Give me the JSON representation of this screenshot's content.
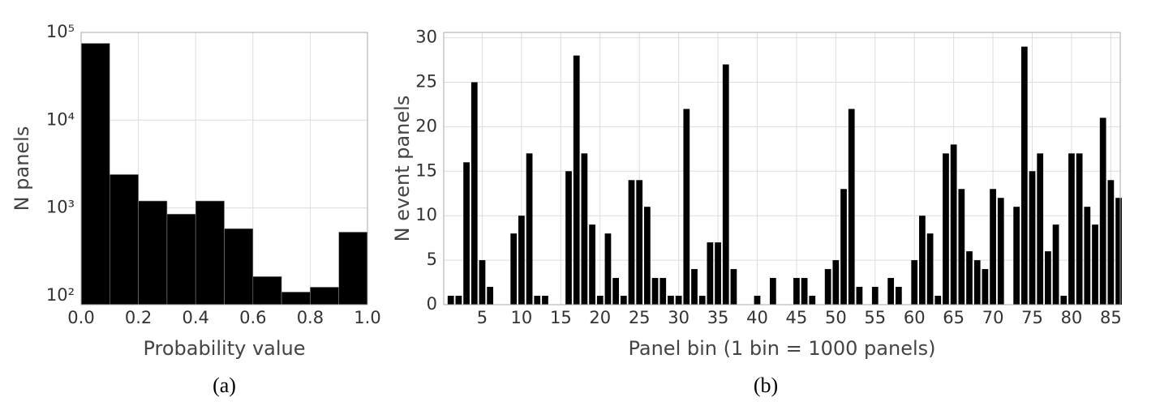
{
  "chart_data": [
    {
      "type": "histogram",
      "caption": "(a)",
      "xlabel": "Probability value",
      "ylabel": "N panels",
      "bins": [
        0,
        0.1,
        0.2,
        0.3,
        0.4,
        0.5,
        0.6,
        0.7,
        0.8,
        0.9,
        1.0
      ],
      "values": [
        75000,
        2400,
        1200,
        850,
        1200,
        580,
        165,
        110,
        125,
        530
      ],
      "color": "#000000",
      "log_y": true,
      "grid": true,
      "xlim": [
        0,
        1
      ],
      "ylim": [
        79,
        100000
      ],
      "xticks": [
        {
          "value": 0,
          "label": "0.0"
        },
        0.2,
        0.4,
        0.6,
        0.8,
        {
          "value": 1,
          "label": "1.0"
        }
      ],
      "yticks": [
        {
          "value": 100,
          "label": "10²"
        },
        {
          "value": 1000,
          "label": "10³"
        },
        {
          "value": 10000,
          "label": "10⁴"
        },
        {
          "value": 100000,
          "label": "10⁵"
        }
      ]
    },
    {
      "type": "bar",
      "caption": "(b)",
      "xlabel": "Panel bin (1 bin = 1000 panels)",
      "ylabel": "N event panels",
      "x": [
        1,
        2,
        3,
        4,
        5,
        6,
        9,
        10,
        11,
        12,
        13,
        16,
        17,
        18,
        19,
        20,
        21,
        22,
        23,
        24,
        25,
        26,
        27,
        28,
        29,
        30,
        31,
        32,
        33,
        34,
        35,
        36,
        37,
        40,
        42,
        45,
        46,
        47,
        49,
        50,
        51,
        52,
        53,
        55,
        57,
        58,
        60,
        61,
        62,
        63,
        64,
        65,
        66,
        67,
        68,
        69,
        70,
        71,
        73,
        74,
        75,
        76,
        77,
        78,
        79,
        80,
        81,
        82,
        83,
        84,
        85,
        86
      ],
      "values": [
        1,
        1,
        16,
        25,
        5,
        2,
        8,
        10,
        17,
        1,
        1,
        15,
        28,
        17,
        9,
        1,
        8,
        3,
        1,
        14,
        14,
        11,
        3,
        3,
        1,
        1,
        22,
        4,
        1,
        7,
        7,
        27,
        4,
        1,
        3,
        3,
        3,
        1,
        4,
        5,
        13,
        22,
        2,
        2,
        3,
        2,
        5,
        10,
        8,
        1,
        17,
        18,
        13,
        6,
        5,
        4,
        13,
        12,
        11,
        29,
        15,
        17,
        6,
        9,
        1,
        17,
        17,
        11,
        9,
        21,
        14,
        12
      ],
      "color": "#000000",
      "grid": true,
      "xlim": [
        0.1,
        86.2
      ],
      "ylim": [
        0,
        30.6
      ],
      "xticks": [
        5,
        10,
        15,
        20,
        25,
        30,
        35,
        40,
        45,
        50,
        55,
        60,
        65,
        70,
        75,
        80,
        85
      ],
      "yticks": [
        0,
        5,
        10,
        15,
        20,
        25,
        30
      ]
    }
  ]
}
